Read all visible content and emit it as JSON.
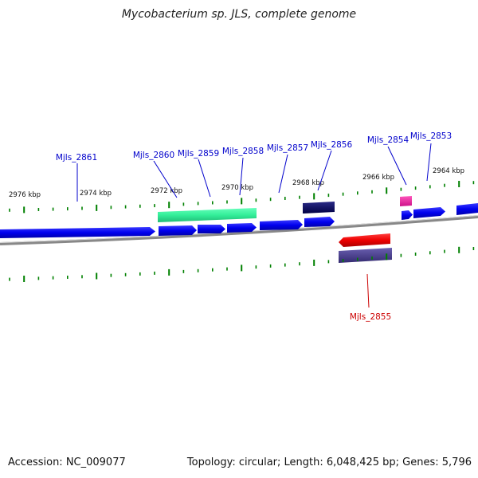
{
  "title": "Mycobacterium sp. JLS, complete genome",
  "footer": {
    "accession": "Accession: NC_009077",
    "summary": "Topology: circular; Length: 6,048,425 bp; Genes: 5,796"
  },
  "scale_labels": [
    "2976 kbp",
    "2974 kbp",
    "2972 kbp",
    "2970 kbp",
    "2968 kbp",
    "2966 kbp",
    "2964 kbp"
  ],
  "gene_labels": [
    "Mjls_2861",
    "Mjls_2860",
    "Mjls_2859",
    "Mjls_2858",
    "Mjls_2857",
    "Mjls_2856",
    "Mjls_2854",
    "Mjls_2853",
    "Mjls_2855"
  ],
  "colors": {
    "forward_gene": "#0000ee",
    "reverse_gene": "#ee0000",
    "feature_green": "#33ee99",
    "feature_navy": "#000066",
    "feature_pink": "#ee2299",
    "feature_purple": "#4a3f8f",
    "backbone": "#888888",
    "tick": "#008000",
    "label_forward": "#0000cc",
    "label_reverse": "#cc0000"
  }
}
